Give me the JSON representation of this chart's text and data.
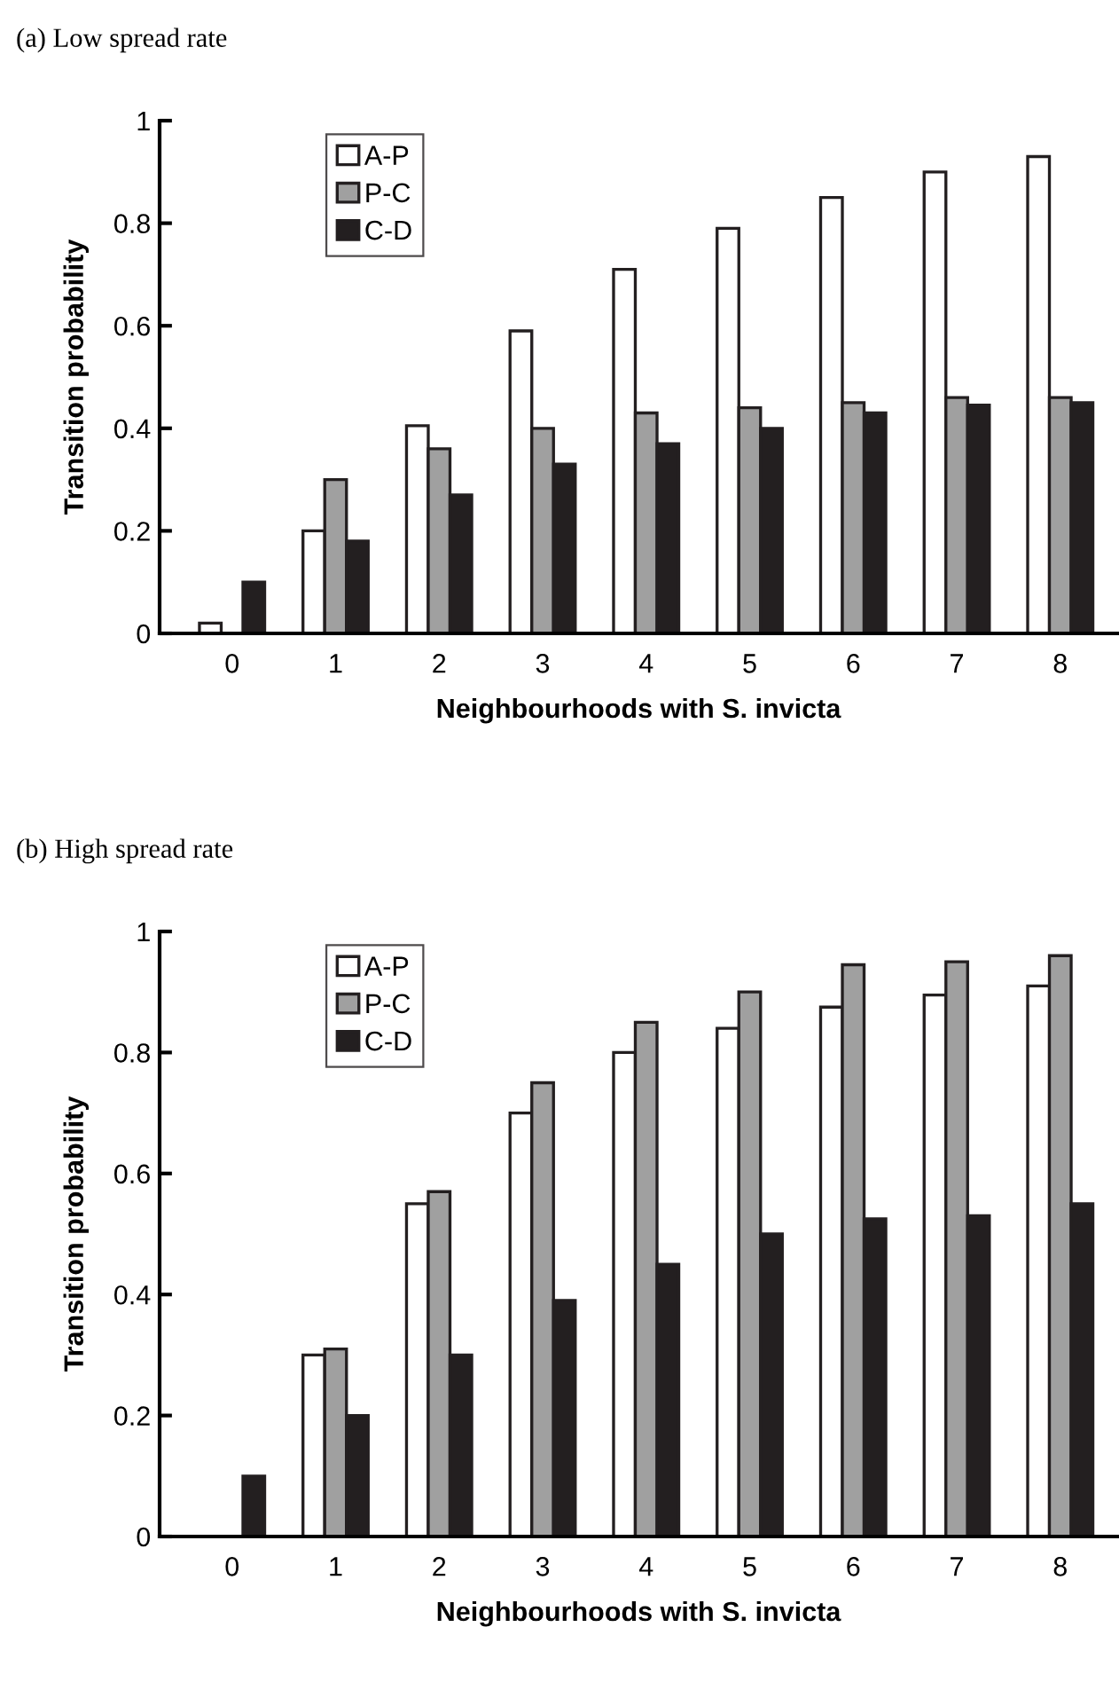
{
  "chart_data": [
    {
      "type": "bar",
      "title": "(a) Low spread rate",
      "xlabel": "Neighbourhoods with S. invicta",
      "ylabel": "Transition probability",
      "categories": [
        "0",
        "1",
        "2",
        "3",
        "4",
        "5",
        "6",
        "7",
        "8"
      ],
      "series": [
        {
          "name": "A-P",
          "color": "#ffffff",
          "values": [
            0.02,
            0.2,
            0.405,
            0.59,
            0.71,
            0.79,
            0.85,
            0.9,
            0.93
          ]
        },
        {
          "name": "P-C",
          "color": "#a0a0a0",
          "values": [
            0,
            0.3,
            0.36,
            0.4,
            0.43,
            0.44,
            0.45,
            0.46,
            0.46
          ]
        },
        {
          "name": "C-D",
          "color": "#231f20",
          "values": [
            0.1,
            0.18,
            0.27,
            0.33,
            0.37,
            0.4,
            0.43,
            0.445,
            0.45
          ]
        }
      ],
      "ylim": [
        0,
        1
      ],
      "yticks": [
        0,
        0.2,
        0.4,
        0.6,
        0.8,
        1
      ],
      "legend": "top left",
      "grid": false
    },
    {
      "type": "bar",
      "title": "(b) High spread rate",
      "xlabel": "Neighbourhoods with S. invicta",
      "ylabel": "Transition probability",
      "categories": [
        "0",
        "1",
        "2",
        "3",
        "4",
        "5",
        "6",
        "7",
        "8"
      ],
      "series": [
        {
          "name": "A-P",
          "color": "#ffffff",
          "values": [
            0,
            0.3,
            0.55,
            0.7,
            0.8,
            0.84,
            0.875,
            0.895,
            0.91
          ]
        },
        {
          "name": "P-C",
          "color": "#a0a0a0",
          "values": [
            0,
            0.31,
            0.57,
            0.75,
            0.85,
            0.9,
            0.945,
            0.95,
            0.96
          ]
        },
        {
          "name": "C-D",
          "color": "#231f20",
          "values": [
            0.1,
            0.2,
            0.3,
            0.39,
            0.45,
            0.5,
            0.525,
            0.53,
            0.55
          ]
        }
      ],
      "ylim": [
        0,
        1
      ],
      "yticks": [
        0,
        0.2,
        0.4,
        0.6,
        0.8,
        1
      ],
      "legend": "top left",
      "grid": false
    }
  ]
}
